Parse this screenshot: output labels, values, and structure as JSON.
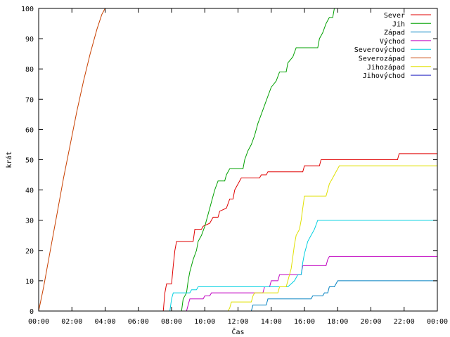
{
  "chart_data": {
    "type": "line",
    "xlabel": "Čas",
    "ylabel": "krát",
    "xlim": [
      0,
      24
    ],
    "ylim": [
      0,
      100
    ],
    "x_ticks": [
      {
        "value": 0,
        "label": "00:00"
      },
      {
        "value": 2,
        "label": "02:00"
      },
      {
        "value": 4,
        "label": "04:00"
      },
      {
        "value": 6,
        "label": "06:00"
      },
      {
        "value": 8,
        "label": "08:00"
      },
      {
        "value": 10,
        "label": "10:00"
      },
      {
        "value": 12,
        "label": "12:00"
      },
      {
        "value": 14,
        "label": "14:00"
      },
      {
        "value": 16,
        "label": "16:00"
      },
      {
        "value": 18,
        "label": "18:00"
      },
      {
        "value": 20,
        "label": "20:00"
      },
      {
        "value": 22,
        "label": "22:00"
      },
      {
        "value": 24,
        "label": "00:00"
      }
    ],
    "y_ticks": [
      {
        "value": 0,
        "label": "0"
      },
      {
        "value": 10,
        "label": "10"
      },
      {
        "value": 20,
        "label": "20"
      },
      {
        "value": 30,
        "label": "30"
      },
      {
        "value": 40,
        "label": "40"
      },
      {
        "value": 50,
        "label": "50"
      },
      {
        "value": 60,
        "label": "60"
      },
      {
        "value": 70,
        "label": "70"
      },
      {
        "value": 80,
        "label": "80"
      },
      {
        "value": 90,
        "label": "90"
      },
      {
        "value": 100,
        "label": "100"
      }
    ],
    "grid": false,
    "legend_position": "top-right",
    "step": true,
    "series": [
      {
        "name": "Sever",
        "color": "#e00000",
        "points": [
          [
            7.5,
            0
          ],
          [
            7.6,
            6
          ],
          [
            7.7,
            9
          ],
          [
            8.0,
            9
          ],
          [
            8.1,
            15
          ],
          [
            8.2,
            20
          ],
          [
            8.3,
            23
          ],
          [
            9.3,
            23
          ],
          [
            9.4,
            27
          ],
          [
            9.8,
            27
          ],
          [
            9.9,
            28
          ],
          [
            10.3,
            29
          ],
          [
            10.5,
            31
          ],
          [
            10.8,
            31
          ],
          [
            10.9,
            33
          ],
          [
            11.3,
            34
          ],
          [
            11.5,
            37
          ],
          [
            11.7,
            37
          ],
          [
            11.8,
            40
          ],
          [
            12.0,
            42
          ],
          [
            12.2,
            44
          ],
          [
            13.3,
            44
          ],
          [
            13.4,
            45
          ],
          [
            13.7,
            45
          ],
          [
            13.8,
            46
          ],
          [
            15.9,
            46
          ],
          [
            16.0,
            48
          ],
          [
            16.9,
            48
          ],
          [
            17.0,
            50
          ],
          [
            21.6,
            50
          ],
          [
            21.7,
            52
          ],
          [
            24,
            52
          ]
        ]
      },
      {
        "name": "Jih",
        "color": "#00a000",
        "points": [
          [
            8.6,
            0
          ],
          [
            8.7,
            4
          ],
          [
            8.9,
            6
          ],
          [
            9.0,
            10
          ],
          [
            9.1,
            13
          ],
          [
            9.3,
            17
          ],
          [
            9.5,
            20
          ],
          [
            9.6,
            23
          ],
          [
            9.8,
            25
          ],
          [
            10.0,
            28
          ],
          [
            10.2,
            32
          ],
          [
            10.4,
            36
          ],
          [
            10.6,
            40
          ],
          [
            10.8,
            43
          ],
          [
            11.2,
            43
          ],
          [
            11.3,
            45
          ],
          [
            11.5,
            47
          ],
          [
            12.3,
            47
          ],
          [
            12.4,
            50
          ],
          [
            12.6,
            53
          ],
          [
            12.8,
            55
          ],
          [
            13.0,
            58
          ],
          [
            13.2,
            62
          ],
          [
            13.4,
            65
          ],
          [
            13.6,
            68
          ],
          [
            13.8,
            71
          ],
          [
            14.0,
            74
          ],
          [
            14.3,
            76
          ],
          [
            14.5,
            79
          ],
          [
            14.9,
            79
          ],
          [
            15.0,
            82
          ],
          [
            15.3,
            84
          ],
          [
            15.5,
            87
          ],
          [
            16.8,
            87
          ],
          [
            16.9,
            90
          ],
          [
            17.1,
            92
          ],
          [
            17.3,
            95
          ],
          [
            17.5,
            97
          ],
          [
            17.7,
            97
          ],
          [
            17.8,
            100
          ],
          [
            24,
            100
          ]
        ]
      },
      {
        "name": "Západ",
        "color": "#0080c0",
        "points": [
          [
            12.8,
            0
          ],
          [
            12.9,
            2
          ],
          [
            13.7,
            2
          ],
          [
            13.8,
            4
          ],
          [
            15.9,
            4
          ],
          [
            16.0,
            4
          ],
          [
            16.4,
            4
          ],
          [
            16.5,
            5
          ],
          [
            17.1,
            5
          ],
          [
            17.2,
            6
          ],
          [
            17.4,
            6
          ],
          [
            17.5,
            8
          ],
          [
            17.8,
            8
          ],
          [
            17.9,
            9
          ],
          [
            18.0,
            10
          ],
          [
            24,
            10
          ]
        ]
      },
      {
        "name": "Východ",
        "color": "#c000c0",
        "points": [
          [
            8.9,
            0
          ],
          [
            9.0,
            2
          ],
          [
            9.1,
            4
          ],
          [
            9.9,
            4
          ],
          [
            10.0,
            5
          ],
          [
            10.3,
            5
          ],
          [
            10.4,
            6
          ],
          [
            12.9,
            6
          ],
          [
            13.0,
            6
          ],
          [
            13.5,
            6
          ],
          [
            13.6,
            8
          ],
          [
            13.9,
            8
          ],
          [
            14.0,
            10
          ],
          [
            14.4,
            10
          ],
          [
            14.5,
            12
          ],
          [
            15.8,
            12
          ],
          [
            15.9,
            15
          ],
          [
            17.3,
            15
          ],
          [
            17.4,
            17
          ],
          [
            17.5,
            18
          ],
          [
            24,
            18
          ]
        ]
      },
      {
        "name": "Severovýchod",
        "color": "#00d0e0",
        "points": [
          [
            7.9,
            0
          ],
          [
            8.0,
            4
          ],
          [
            8.1,
            6
          ],
          [
            9.1,
            6
          ],
          [
            9.2,
            7
          ],
          [
            9.5,
            7
          ],
          [
            9.6,
            8
          ],
          [
            14.9,
            8
          ],
          [
            15.0,
            8
          ],
          [
            15.2,
            9
          ],
          [
            15.4,
            10
          ],
          [
            15.6,
            12
          ],
          [
            15.8,
            12
          ],
          [
            15.9,
            16
          ],
          [
            16.0,
            19
          ],
          [
            16.1,
            21
          ],
          [
            16.2,
            23
          ],
          [
            16.4,
            25
          ],
          [
            16.6,
            27
          ],
          [
            16.8,
            30
          ],
          [
            24,
            30
          ]
        ]
      },
      {
        "name": "Severozápad",
        "color": "#c84000",
        "points": [
          [
            0.0,
            0
          ],
          [
            0.3,
            8
          ],
          [
            0.7,
            20
          ],
          [
            1.1,
            32
          ],
          [
            1.5,
            44
          ],
          [
            1.9,
            55
          ],
          [
            2.3,
            66
          ],
          [
            2.7,
            76
          ],
          [
            3.1,
            85
          ],
          [
            3.5,
            93
          ],
          [
            3.8,
            98
          ],
          [
            4.0,
            100
          ]
        ]
      },
      {
        "name": "Jihozápad",
        "color": "#e0e000",
        "points": [
          [
            11.4,
            0
          ],
          [
            11.5,
            1
          ],
          [
            11.6,
            3
          ],
          [
            12.8,
            3
          ],
          [
            12.9,
            5
          ],
          [
            13.0,
            6
          ],
          [
            14.4,
            6
          ],
          [
            14.5,
            8
          ],
          [
            14.9,
            8
          ],
          [
            15.0,
            10
          ],
          [
            15.2,
            14
          ],
          [
            15.3,
            18
          ],
          [
            15.4,
            22
          ],
          [
            15.5,
            25
          ],
          [
            15.7,
            27
          ],
          [
            15.8,
            30
          ],
          [
            15.9,
            34
          ],
          [
            16.0,
            38
          ],
          [
            17.3,
            38
          ],
          [
            17.4,
            40
          ],
          [
            17.5,
            42
          ],
          [
            17.7,
            44
          ],
          [
            17.9,
            46
          ],
          [
            18.1,
            48
          ],
          [
            24,
            48
          ]
        ]
      },
      {
        "name": "Jihovýchod",
        "color": "#2020c0",
        "points": []
      }
    ]
  }
}
